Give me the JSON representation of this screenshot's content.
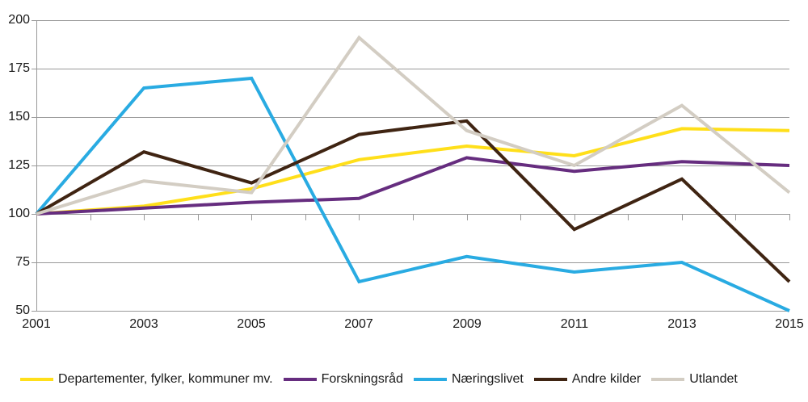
{
  "chart_data": {
    "type": "line",
    "title": "",
    "x": [
      2001,
      2003,
      2005,
      2007,
      2009,
      2011,
      2013,
      2015
    ],
    "x_minor_tick_interval": 1,
    "x_range": [
      2001,
      2015
    ],
    "ylim": [
      50,
      200
    ],
    "yticks": [
      200,
      175,
      150,
      125,
      100,
      75,
      50
    ],
    "ytick_labels": [
      "200",
      "175",
      "150",
      "125",
      "100",
      "75",
      "50"
    ],
    "xtick_labels": [
      "2001",
      "2003",
      "2005",
      "2007",
      "2009",
      "2011",
      "2013",
      "2015"
    ],
    "grid": true,
    "x_axis_at_value": 100,
    "legend_position": "bottom",
    "axis_color": "#999999",
    "text_color": "#1a1a1a",
    "background_color": "#ffffff",
    "series": [
      {
        "name": "Departementer, fylker, kommuner mv.",
        "color": "#ffdf1a",
        "values": [
          100,
          104,
          113,
          128,
          135,
          130,
          144,
          143
        ]
      },
      {
        "name": "Forskningsråd",
        "color": "#662d7f",
        "values": [
          100,
          103,
          106,
          108,
          129,
          122,
          127,
          125
        ]
      },
      {
        "name": "Næringslivet",
        "color": "#29abe2",
        "values": [
          100,
          165,
          170,
          65,
          78,
          70,
          75,
          50
        ]
      },
      {
        "name": "Andre kilder",
        "color": "#3f2412",
        "values": [
          100,
          132,
          116,
          141,
          148,
          92,
          118,
          65
        ]
      },
      {
        "name": "Utlandet",
        "color": "#d3cdc3",
        "values": [
          100,
          117,
          111,
          191,
          143,
          125,
          156,
          111
        ]
      }
    ]
  }
}
